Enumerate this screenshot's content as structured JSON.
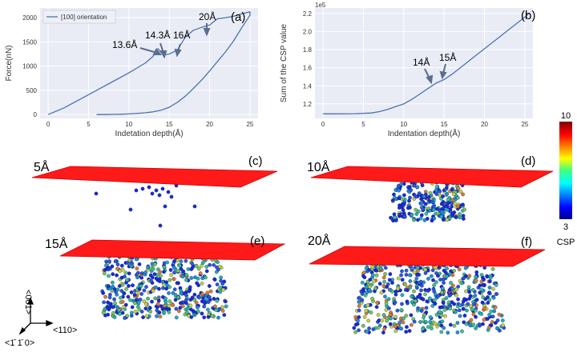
{
  "chart_data": [
    {
      "type": "line",
      "panel": "(a)",
      "xlabel": "Indetation depth(Å)",
      "ylabel": "Force(nN)",
      "xlim": [
        -1,
        26
      ],
      "ylim": [
        -80,
        2200
      ],
      "xticks": [
        0,
        5,
        10,
        15,
        20,
        25
      ],
      "yticks": [
        0,
        500,
        1000,
        1500,
        2000
      ],
      "grid": true,
      "legend_position": "top-left",
      "series": [
        {
          "name": "[100] orientation",
          "color": "#4c72b0",
          "x": [
            0,
            2,
            4,
            6,
            8,
            10,
            12,
            13,
            13.6,
            14,
            14.3,
            15,
            16,
            17,
            18,
            19,
            20,
            21,
            22,
            23,
            24,
            25,
            25,
            24,
            23,
            22,
            21,
            20,
            19,
            18,
            17,
            16,
            15,
            14,
            13,
            12,
            11,
            10,
            9,
            8,
            7,
            6
          ],
          "y": [
            0,
            140,
            320,
            500,
            680,
            860,
            1060,
            1200,
            1360,
            1280,
            1230,
            1250,
            1330,
            1600,
            1740,
            1800,
            1850,
            1980,
            2000,
            2030,
            2080,
            2120,
            2050,
            1800,
            1530,
            1300,
            1100,
            900,
            710,
            540,
            380,
            250,
            150,
            90,
            55,
            35,
            22,
            12,
            6,
            2,
            0,
            0
          ]
        }
      ],
      "annotations": [
        "13.6Å",
        "14.3Å",
        "16Å",
        "20Å"
      ]
    },
    {
      "type": "line",
      "panel": "(b)",
      "xlabel": "Indentation depth(Å)",
      "ylabel": "Sum of the CSP value",
      "scale_note": "1e5",
      "xlim": [
        -1,
        26
      ],
      "ylim": [
        1.04,
        2.26
      ],
      "xticks": [
        0,
        5,
        10,
        15,
        20,
        25
      ],
      "yticks": [
        1.2,
        1.4,
        1.6,
        1.8,
        2.0,
        2.2
      ],
      "grid": true,
      "series": [
        {
          "color": "#4c72b0",
          "x": [
            0,
            2,
            4,
            6,
            7,
            8,
            9,
            10,
            11,
            12,
            13,
            14,
            15,
            16,
            17,
            18,
            19,
            20,
            21,
            22,
            23,
            24,
            25,
            25.5
          ],
          "y": [
            1.09,
            1.09,
            1.092,
            1.1,
            1.115,
            1.14,
            1.17,
            1.2,
            1.25,
            1.31,
            1.37,
            1.43,
            1.47,
            1.53,
            1.6,
            1.67,
            1.74,
            1.81,
            1.88,
            1.95,
            2.02,
            2.09,
            2.16,
            2.2
          ]
        }
      ],
      "annotations": [
        "14Å",
        "15Å"
      ]
    }
  ],
  "panels": {
    "c": {
      "tag": "(c)",
      "depth": "5Å"
    },
    "d": {
      "tag": "(d)",
      "depth": "10Å"
    },
    "e": {
      "tag": "(e)",
      "depth": "15Å"
    },
    "f": {
      "tag": "(f)",
      "depth": "20Å"
    }
  },
  "colorbar": {
    "max": "10",
    "min": "3",
    "title": "CSP"
  },
  "axes_triad": {
    "up": "<001>",
    "right": "<110>",
    "out": "<1̄ 1̄ 0>"
  },
  "colors": {
    "plane": "#ff1a1a",
    "plot_bg": "#e9ecf5",
    "line": "#4c72b0"
  }
}
